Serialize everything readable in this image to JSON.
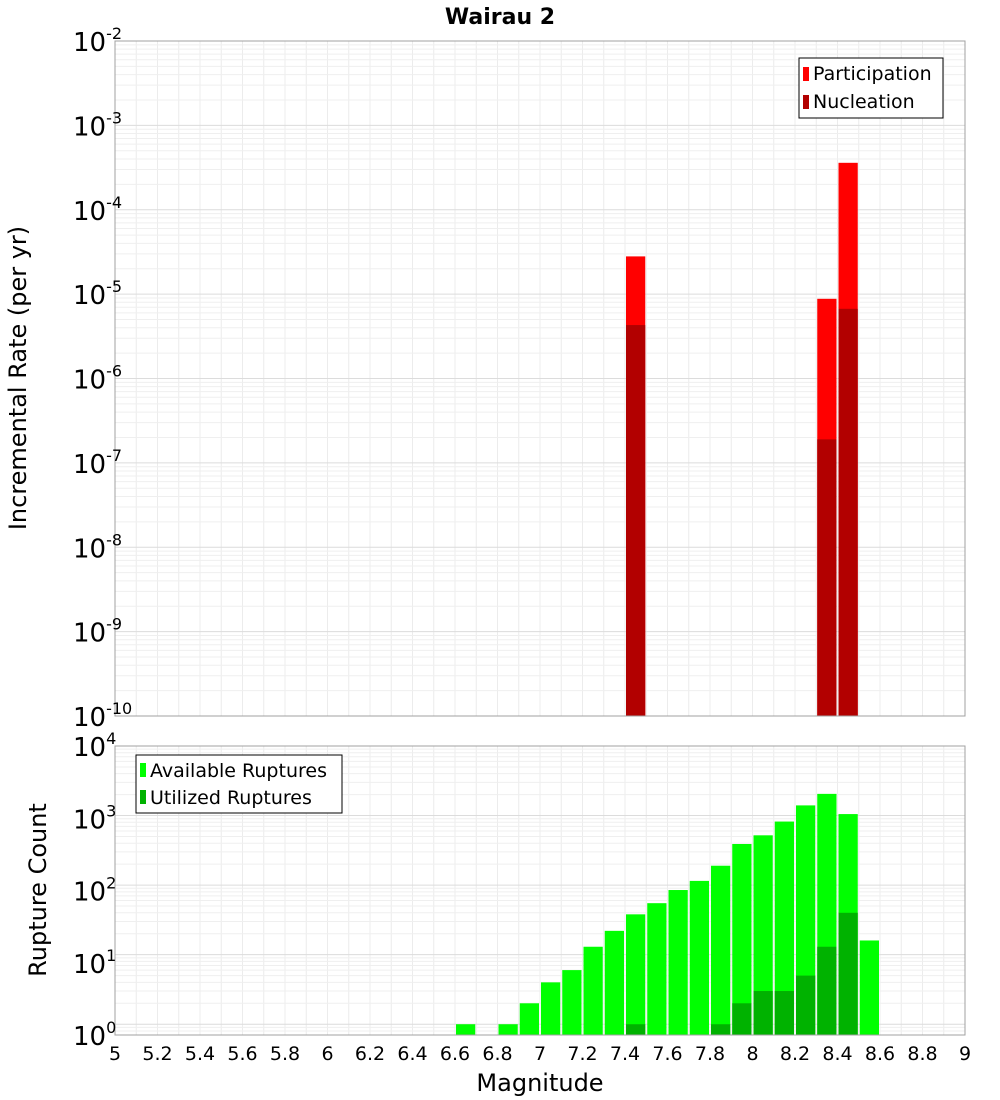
{
  "chart_data": [
    {
      "type": "bar",
      "title": "Wairau 2",
      "xlabel": "Magnitude",
      "ylabel": "Incremental Rate (per yr)",
      "yscale": "log",
      "xlim": [
        5,
        9
      ],
      "ylim": [
        1e-10,
        0.01
      ],
      "grid": true,
      "legend_position": "top-right",
      "y_tick_labels": [
        {
          "base": "10",
          "exp": "-2"
        },
        {
          "base": "10",
          "exp": "-3"
        },
        {
          "base": "10",
          "exp": "-4"
        },
        {
          "base": "10",
          "exp": "-5"
        },
        {
          "base": "10",
          "exp": "-6"
        },
        {
          "base": "10",
          "exp": "-7"
        },
        {
          "base": "10",
          "exp": "-8"
        },
        {
          "base": "10",
          "exp": "-9"
        },
        {
          "base": "10",
          "exp": "-10"
        }
      ],
      "series": [
        {
          "name": "Participation",
          "color": "#ff0000",
          "points": [
            {
              "x": 7.45,
              "y": 2.8e-05
            },
            {
              "x": 8.35,
              "y": 8.8e-06
            },
            {
              "x": 8.45,
              "y": 0.00036
            }
          ]
        },
        {
          "name": "Nucleation",
          "color": "#b20000",
          "points": [
            {
              "x": 7.45,
              "y": 4.3e-06
            },
            {
              "x": 8.35,
              "y": 1.9e-07
            },
            {
              "x": 8.45,
              "y": 6.7e-06
            }
          ]
        }
      ]
    },
    {
      "type": "bar",
      "title": "",
      "xlabel": "Magnitude",
      "ylabel": "Rupture Count",
      "yscale": "log",
      "xlim": [
        5,
        9
      ],
      "ylim": [
        0.7,
        10000
      ],
      "grid": true,
      "legend_position": "top-left",
      "x_tick_labels": [
        "5",
        "5.2",
        "5.4",
        "5.6",
        "5.8",
        "6",
        "6.2",
        "6.4",
        "6.6",
        "6.8",
        "7",
        "7.2",
        "7.4",
        "7.6",
        "7.8",
        "8",
        "8.2",
        "8.4",
        "8.6",
        "8.8",
        "9"
      ],
      "y_tick_labels": [
        {
          "base": "10",
          "exp": "4"
        },
        {
          "base": "10",
          "exp": "3"
        },
        {
          "base": "10",
          "exp": "2"
        },
        {
          "base": "10",
          "exp": "1"
        },
        {
          "base": "10",
          "exp": "0"
        }
      ],
      "series": [
        {
          "name": "Available Ruptures",
          "color": "#00ff00",
          "points": [
            {
              "x": 6.65,
              "y": 1
            },
            {
              "x": 6.85,
              "y": 1
            },
            {
              "x": 6.95,
              "y": 2
            },
            {
              "x": 7.05,
              "y": 4
            },
            {
              "x": 7.15,
              "y": 6
            },
            {
              "x": 7.25,
              "y": 13
            },
            {
              "x": 7.35,
              "y": 22
            },
            {
              "x": 7.45,
              "y": 38
            },
            {
              "x": 7.55,
              "y": 55
            },
            {
              "x": 7.65,
              "y": 85
            },
            {
              "x": 7.75,
              "y": 115
            },
            {
              "x": 7.85,
              "y": 190
            },
            {
              "x": 7.95,
              "y": 390
            },
            {
              "x": 8.05,
              "y": 520
            },
            {
              "x": 8.15,
              "y": 820
            },
            {
              "x": 8.25,
              "y": 1400
            },
            {
              "x": 8.35,
              "y": 2050
            },
            {
              "x": 8.45,
              "y": 1050
            },
            {
              "x": 8.55,
              "y": 16
            }
          ]
        },
        {
          "name": "Utilized Ruptures",
          "color": "#00b200",
          "points": [
            {
              "x": 7.45,
              "y": 1
            },
            {
              "x": 7.85,
              "y": 1
            },
            {
              "x": 7.95,
              "y": 2
            },
            {
              "x": 8.05,
              "y": 3
            },
            {
              "x": 8.15,
              "y": 3
            },
            {
              "x": 8.25,
              "y": 5
            },
            {
              "x": 8.35,
              "y": 13
            },
            {
              "x": 8.45,
              "y": 40
            }
          ]
        }
      ]
    }
  ]
}
